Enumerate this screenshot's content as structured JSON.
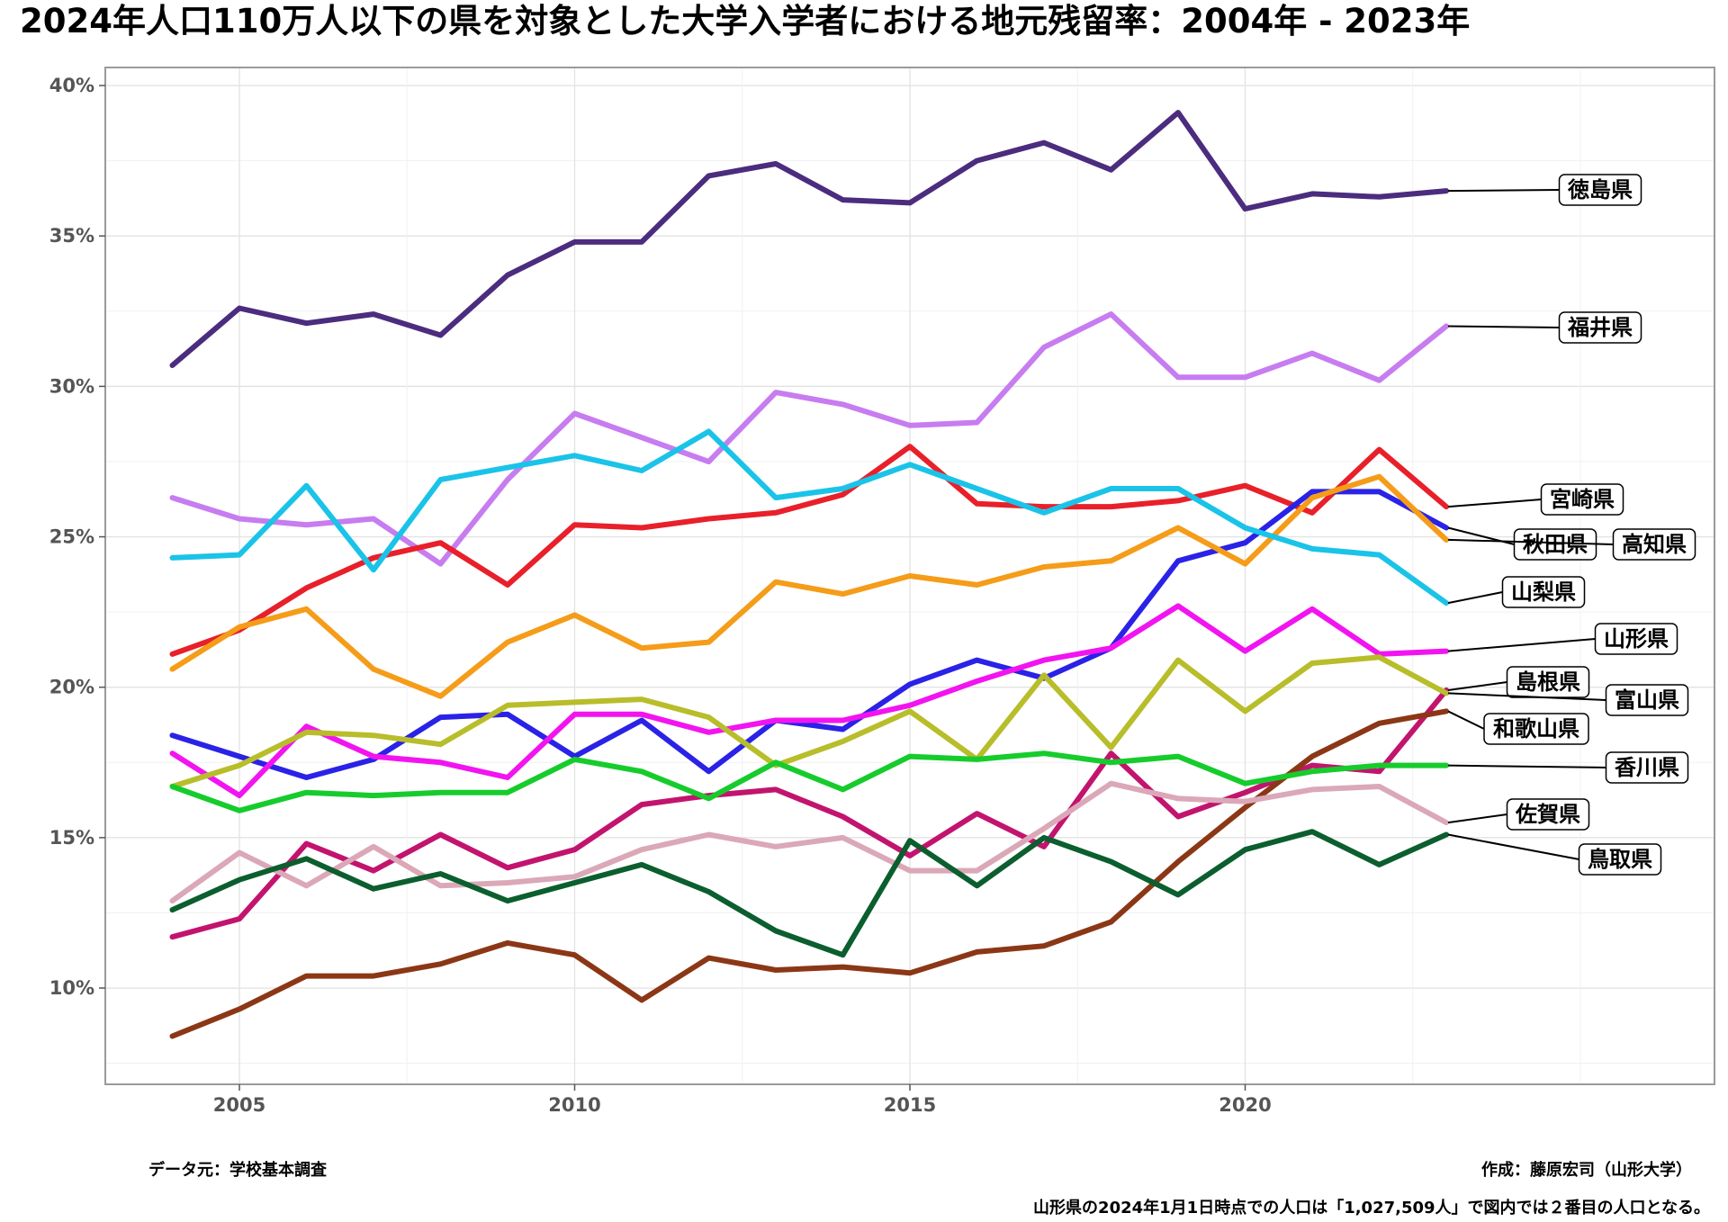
{
  "chart_data": {
    "type": "line",
    "title": "2024年人口110万人以下の県を対象とした大学入学者における地元残留率：2004年 - 2023年",
    "xlabel": "",
    "ylabel": "",
    "xlim": [
      2003,
      2027
    ],
    "ylim": [
      6.8,
      40.6
    ],
    "x_ticks": [
      2005,
      2010,
      2015,
      2020
    ],
    "x_tick_labels": [
      "2005",
      "2010",
      "2015",
      "2020"
    ],
    "y_ticks": [
      10,
      15,
      20,
      25,
      30,
      35,
      40
    ],
    "y_tick_labels": [
      "10%",
      "15%",
      "20%",
      "25%",
      "30%",
      "35%",
      "40%"
    ],
    "grid": true,
    "legend": "direct labels at line ends (right)",
    "x": [
      2004,
      2005,
      2006,
      2007,
      2008,
      2009,
      2010,
      2011,
      2012,
      2013,
      2014,
      2015,
      2016,
      2017,
      2018,
      2019,
      2020,
      2021,
      2022,
      2023
    ],
    "series": [
      {
        "name": "徳島県",
        "color": "#4b2c7e",
        "values": [
          30.7,
          32.6,
          32.1,
          32.4,
          31.7,
          33.7,
          34.8,
          34.8,
          37.0,
          37.4,
          36.2,
          36.1,
          37.5,
          38.1,
          37.2,
          39.1,
          35.9,
          36.4,
          36.3,
          36.5
        ]
      },
      {
        "name": "福井県",
        "color": "#c77cf0",
        "values": [
          26.3,
          25.6,
          25.4,
          25.6,
          24.1,
          26.9,
          29.1,
          28.3,
          27.5,
          29.8,
          29.4,
          28.7,
          28.8,
          31.3,
          32.4,
          30.3,
          30.3,
          31.1,
          30.2,
          32.0
        ]
      },
      {
        "name": "宮崎県",
        "color": "#e8202a",
        "values": [
          21.1,
          21.9,
          23.3,
          24.3,
          24.8,
          23.4,
          25.4,
          25.3,
          25.6,
          25.8,
          26.4,
          28.0,
          26.1,
          26.0,
          26.0,
          26.2,
          26.7,
          25.8,
          27.9,
          26.0
        ]
      },
      {
        "name": "秋田県",
        "color": "#2a22e6",
        "values": [
          18.4,
          17.7,
          17.0,
          17.6,
          19.0,
          19.1,
          17.7,
          18.9,
          17.2,
          18.9,
          18.6,
          20.1,
          20.9,
          20.3,
          21.3,
          24.2,
          24.8,
          26.5,
          26.5,
          25.3
        ]
      },
      {
        "name": "高知県",
        "color": "#f59c19",
        "values": [
          20.6,
          22.0,
          22.6,
          20.6,
          19.7,
          21.5,
          22.4,
          21.3,
          21.5,
          23.5,
          23.1,
          23.7,
          23.4,
          24.0,
          24.2,
          25.3,
          24.1,
          26.3,
          27.0,
          24.9
        ]
      },
      {
        "name": "山梨県",
        "color": "#1ac3e8",
        "values": [
          24.3,
          24.4,
          26.7,
          23.9,
          26.9,
          27.3,
          27.7,
          27.2,
          28.5,
          26.3,
          26.6,
          27.4,
          26.6,
          25.8,
          26.6,
          26.6,
          25.3,
          24.6,
          24.4,
          22.8
        ]
      },
      {
        "name": "山形県",
        "color": "#f214f0",
        "values": [
          17.8,
          16.4,
          18.7,
          17.7,
          17.5,
          17.0,
          19.1,
          19.1,
          18.5,
          18.9,
          18.9,
          19.4,
          20.2,
          20.9,
          21.3,
          22.7,
          21.2,
          22.6,
          21.1,
          21.2
        ]
      },
      {
        "name": "島根県",
        "color": "#c2146e",
        "values": [
          11.7,
          12.3,
          14.8,
          13.9,
          15.1,
          14.0,
          14.6,
          16.1,
          16.4,
          16.6,
          15.7,
          14.4,
          15.8,
          14.7,
          17.8,
          15.7,
          16.5,
          17.4,
          17.2,
          19.9
        ]
      },
      {
        "name": "富山県",
        "color": "#b8bd2a",
        "values": [
          16.7,
          17.4,
          18.5,
          18.4,
          18.1,
          19.4,
          19.5,
          19.6,
          19.0,
          17.4,
          18.2,
          19.2,
          17.6,
          20.4,
          18.0,
          20.9,
          19.2,
          20.8,
          21.0,
          19.8
        ]
      },
      {
        "name": "和歌山県",
        "color": "#8b3716",
        "values": [
          8.4,
          9.3,
          10.4,
          10.4,
          10.8,
          11.5,
          11.1,
          9.6,
          11.0,
          10.6,
          10.7,
          10.5,
          11.2,
          11.4,
          12.2,
          14.2,
          16.0,
          17.7,
          18.8,
          19.2
        ]
      },
      {
        "name": "香川県",
        "color": "#16cc2c",
        "values": [
          16.7,
          15.9,
          16.5,
          16.4,
          16.5,
          16.5,
          17.6,
          17.2,
          16.3,
          17.5,
          16.6,
          17.7,
          17.6,
          17.8,
          17.5,
          17.7,
          16.8,
          17.2,
          17.4,
          17.4
        ]
      },
      {
        "name": "佐賀県",
        "color": "#dba8b8",
        "values": [
          12.9,
          14.5,
          13.4,
          14.7,
          13.4,
          13.5,
          13.7,
          14.6,
          15.1,
          14.7,
          15.0,
          13.9,
          13.9,
          15.3,
          16.8,
          16.3,
          16.2,
          16.6,
          16.7,
          15.5
        ]
      },
      {
        "name": "鳥取県",
        "color": "#0b5e2e",
        "values": [
          12.6,
          13.6,
          14.3,
          13.3,
          13.8,
          12.9,
          13.5,
          14.1,
          13.2,
          11.9,
          11.1,
          14.9,
          13.4,
          15.0,
          14.2,
          13.1,
          14.6,
          15.2,
          14.1,
          15.1
        ]
      }
    ],
    "end_labels": [
      {
        "text": "徳島県",
        "series": "徳島県"
      },
      {
        "text": "福井県",
        "series": "福井県"
      },
      {
        "text": "宮崎県",
        "series": "宮崎県"
      },
      {
        "text": "秋田県",
        "series": "秋田県"
      },
      {
        "text": "高知県",
        "series": "高知県"
      },
      {
        "text": "山梨県",
        "series": "山梨県"
      },
      {
        "text": "山形県",
        "series": "山形県"
      },
      {
        "text": "島根県",
        "series": "島根県"
      },
      {
        "text": "富山県",
        "series": "富山県"
      },
      {
        "text": "和歌山県",
        "series": "和歌山県"
      },
      {
        "text": "香川県",
        "series": "香川県"
      },
      {
        "text": "佐賀県",
        "series": "佐賀県"
      },
      {
        "text": "鳥取県",
        "series": "鳥取県"
      }
    ]
  },
  "footer": {
    "source": "データ元：学校基本調査",
    "author": "作成：藤原宏司（山形大学）",
    "note": "山形県の2024年1月1日時点での人口は「1,027,509人」で図内では２番目の人口となる。"
  }
}
